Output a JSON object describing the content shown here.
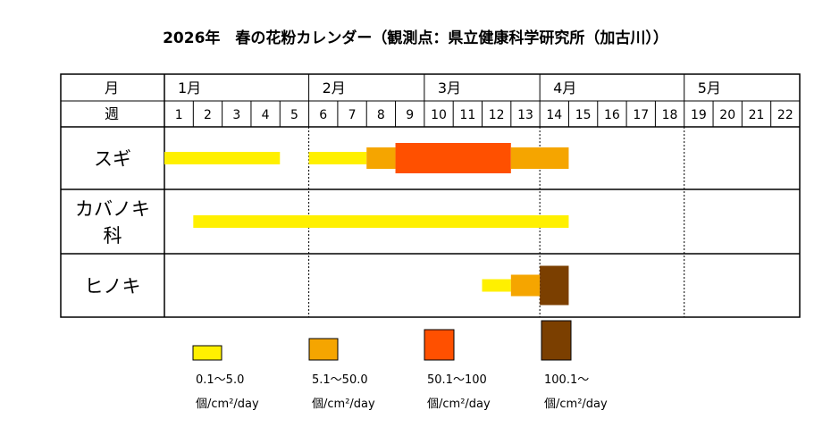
{
  "chart_data": {
    "type": "gantt",
    "title": "2026年　春の花粉カレンダー（観測点：県立健康科学研究所（加古川））",
    "header": {
      "month_label": "月",
      "week_label": "週"
    },
    "months": [
      {
        "label": "1月",
        "start_week": 1
      },
      {
        "label": "2月",
        "start_week": 6
      },
      {
        "label": "3月",
        "start_week": 10
      },
      {
        "label": "4月",
        "start_week": 14
      },
      {
        "label": "5月",
        "start_week": 19
      }
    ],
    "month_dividers_after_week": [
      5,
      13,
      18
    ],
    "weeks": [
      "1",
      "2",
      "3",
      "4",
      "5",
      "6",
      "7",
      "8",
      "9",
      "10",
      "11",
      "12",
      "13",
      "14",
      "15",
      "16",
      "17",
      "18",
      "19",
      "20",
      "21",
      "22"
    ],
    "levels": [
      {
        "id": "L1",
        "color": "#FFF000",
        "range": "0.1～5.0",
        "unit": "個/cm²/day"
      },
      {
        "id": "L2",
        "color": "#F5A500",
        "range": "5.1～50.0",
        "unit": "個/cm²/day"
      },
      {
        "id": "L3",
        "color": "#FF5000",
        "range": "50.1～100",
        "unit": "個/cm²/day"
      },
      {
        "id": "L4",
        "color": "#7B3F00",
        "range": "100.1～",
        "unit": "個/cm²/day"
      }
    ],
    "series": [
      {
        "name": "スギ",
        "lines": [
          "スギ"
        ],
        "segments": [
          {
            "start": 1,
            "end": 4,
            "level": "L1"
          },
          {
            "start": 6,
            "end": 7,
            "level": "L1"
          },
          {
            "start": 8,
            "end": 8,
            "level": "L2"
          },
          {
            "start": 9,
            "end": 12,
            "level": "L3"
          },
          {
            "start": 13,
            "end": 14,
            "level": "L2"
          }
        ]
      },
      {
        "name": "カバノキ科",
        "lines": [
          "カバノキ",
          "科"
        ],
        "segments": [
          {
            "start": 2,
            "end": 14,
            "level": "L1"
          }
        ]
      },
      {
        "name": "ヒノキ",
        "lines": [
          "ヒノキ"
        ],
        "segments": [
          {
            "start": 12,
            "end": 12,
            "level": "L1"
          },
          {
            "start": 13,
            "end": 13,
            "level": "L2"
          },
          {
            "start": 14,
            "end": 14,
            "level": "L4"
          }
        ]
      }
    ]
  }
}
